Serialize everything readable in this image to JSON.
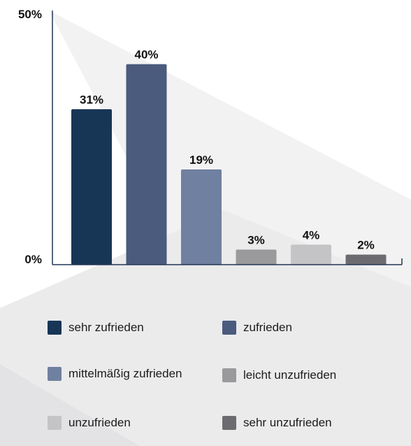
{
  "chart_data": {
    "type": "bar",
    "categories": [
      "sehr zufrieden",
      "zufrieden",
      "mittelmäßig zufrieden",
      "leicht unzufrieden",
      "unzufrieden",
      "sehr unzufrieden"
    ],
    "values": [
      31,
      40,
      19,
      3,
      4,
      2
    ],
    "value_labels": [
      "31%",
      "40%",
      "19%",
      "3%",
      "4%",
      "2%"
    ],
    "colors": [
      "#173656",
      "#4b5b7e",
      "#7080a0",
      "#9a9a9c",
      "#c4c4c6",
      "#6c6c70"
    ],
    "ylim": [
      0,
      50
    ],
    "yticks": [
      "0%",
      "50%"
    ],
    "grid": false,
    "legend_position": "bottom"
  }
}
